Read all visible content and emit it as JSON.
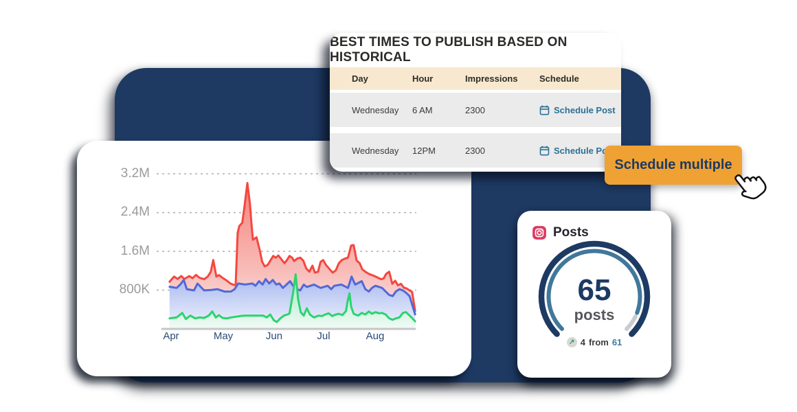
{
  "best_times_card": {
    "title": "BEST TIMES TO PUBLISH BASED ON HISTORICAL",
    "columns": [
      "Day",
      "Hour",
      "Impressions",
      "Schedule"
    ],
    "rows": [
      {
        "day": "Wednesday",
        "hour": "6 AM",
        "impressions": "2300",
        "action": "Schedule Post"
      },
      {
        "day": "Wednesday",
        "hour": "12PM",
        "impressions": "2300",
        "action": "Schedule Post"
      }
    ],
    "header_bg": "#f7e8cf",
    "link_color": "#2d7195"
  },
  "schedule_button": {
    "label": "Schedule multiple",
    "bg": "#efa233",
    "text_color": "#1d3a63"
  },
  "posts_card": {
    "title": "Posts",
    "icon": "instagram-icon",
    "value": "65",
    "unit": "posts",
    "delta": "4",
    "delta_word": "from",
    "previous": "61",
    "progress": 0.91,
    "arc_outer_color": "#1d3a63",
    "arc_inner_color": "#41789a",
    "arc_tail_color": "#c9ccd1"
  },
  "chart_data": {
    "type": "area",
    "title": "",
    "xlabel": "",
    "ylabel": "",
    "x_ticks": [
      "Apr",
      "May",
      "Jun",
      "Jul",
      "Aug"
    ],
    "y_ticks": [
      "3.2M",
      "2.4M",
      "1.6M",
      "800K"
    ],
    "y_tick_values_k": [
      3200,
      2400,
      1600,
      800
    ],
    "ylim_k": [
      0,
      3400
    ],
    "grid": "dashed horizontal",
    "legend": "none",
    "x_unit": "months (Apr=0 .. Aug=4), values in thousands of impressions",
    "series": [
      {
        "name": "red",
        "color": "#f4473f",
        "fill_top": "#f5827a",
        "fill_bottom": "#fdecea",
        "points": [
          [
            -0.03,
            975
          ],
          [
            0.06,
            1080
          ],
          [
            0.13,
            1030
          ],
          [
            0.2,
            1090
          ],
          [
            0.26,
            1030
          ],
          [
            0.36,
            1090
          ],
          [
            0.42,
            1045
          ],
          [
            0.49,
            1115
          ],
          [
            0.56,
            1055
          ],
          [
            0.65,
            1025
          ],
          [
            0.72,
            1080
          ],
          [
            0.78,
            1175
          ],
          [
            0.83,
            1420
          ],
          [
            0.89,
            1080
          ],
          [
            0.94,
            1110
          ],
          [
            1.01,
            1055
          ],
          [
            1.09,
            1000
          ],
          [
            1.17,
            935
          ],
          [
            1.24,
            905
          ],
          [
            1.27,
            915
          ],
          [
            1.31,
            1980
          ],
          [
            1.34,
            2120
          ],
          [
            1.4,
            2190
          ],
          [
            1.44,
            2500
          ],
          [
            1.5,
            3010
          ],
          [
            1.55,
            2590
          ],
          [
            1.58,
            2190
          ],
          [
            1.61,
            1840
          ],
          [
            1.68,
            1890
          ],
          [
            1.74,
            1640
          ],
          [
            1.79,
            1390
          ],
          [
            1.84,
            1290
          ],
          [
            1.9,
            1320
          ],
          [
            1.96,
            1420
          ],
          [
            2.01,
            1505
          ],
          [
            2.06,
            1470
          ],
          [
            2.11,
            1515
          ],
          [
            2.17,
            1435
          ],
          [
            2.23,
            1355
          ],
          [
            2.28,
            1420
          ],
          [
            2.33,
            1505
          ],
          [
            2.38,
            1470
          ],
          [
            2.42,
            1400
          ],
          [
            2.48,
            1450
          ],
          [
            2.54,
            1470
          ],
          [
            2.6,
            1410
          ],
          [
            2.66,
            1245
          ],
          [
            2.72,
            1180
          ],
          [
            2.78,
            1305
          ],
          [
            2.83,
            1160
          ],
          [
            2.89,
            1180
          ],
          [
            2.94,
            1385
          ],
          [
            2.99,
            1420
          ],
          [
            3.05,
            1315
          ],
          [
            3.12,
            1230
          ],
          [
            3.18,
            1160
          ],
          [
            3.24,
            1210
          ],
          [
            3.3,
            1355
          ],
          [
            3.36,
            1420
          ],
          [
            3.42,
            1450
          ],
          [
            3.48,
            1470
          ],
          [
            3.54,
            1720
          ],
          [
            3.59,
            1730
          ],
          [
            3.65,
            1410
          ],
          [
            3.71,
            1355
          ],
          [
            3.76,
            1230
          ],
          [
            3.82,
            1180
          ],
          [
            3.89,
            1135
          ],
          [
            3.94,
            1115
          ],
          [
            4.0,
            1090
          ],
          [
            4.07,
            1055
          ],
          [
            4.13,
            1025
          ],
          [
            4.18,
            1040
          ],
          [
            4.23,
            1135
          ],
          [
            4.29,
            1180
          ],
          [
            4.35,
            930
          ],
          [
            4.41,
            995
          ],
          [
            4.46,
            900
          ],
          [
            4.52,
            930
          ],
          [
            4.58,
            850
          ],
          [
            4.63,
            835
          ],
          [
            4.69,
            795
          ],
          [
            4.74,
            765
          ],
          [
            4.8,
            370
          ]
        ]
      },
      {
        "name": "blue",
        "color": "#5168d8",
        "fill_top": "#a9b9ef",
        "fill_bottom": "#f0f4fd",
        "points": [
          [
            -0.03,
            870
          ],
          [
            0.11,
            845
          ],
          [
            0.18,
            915
          ],
          [
            0.25,
            1010
          ],
          [
            0.31,
            820
          ],
          [
            0.45,
            795
          ],
          [
            0.52,
            935
          ],
          [
            0.65,
            795
          ],
          [
            0.79,
            805
          ],
          [
            0.91,
            820
          ],
          [
            1.05,
            770
          ],
          [
            1.18,
            772
          ],
          [
            1.25,
            820
          ],
          [
            1.32,
            937
          ],
          [
            1.46,
            915
          ],
          [
            1.6,
            937
          ],
          [
            1.66,
            890
          ],
          [
            1.73,
            985
          ],
          [
            1.8,
            915
          ],
          [
            1.86,
            1030
          ],
          [
            1.93,
            937
          ],
          [
            2.0,
            1010
          ],
          [
            2.07,
            915
          ],
          [
            2.13,
            937
          ],
          [
            2.2,
            845
          ],
          [
            2.27,
            915
          ],
          [
            2.34,
            985
          ],
          [
            2.4,
            890
          ],
          [
            2.47,
            820
          ],
          [
            2.54,
            795
          ],
          [
            2.61,
            915
          ],
          [
            2.67,
            866
          ],
          [
            2.81,
            915
          ],
          [
            2.94,
            845
          ],
          [
            3.08,
            890
          ],
          [
            3.15,
            820
          ],
          [
            3.21,
            890
          ],
          [
            3.35,
            915
          ],
          [
            3.48,
            845
          ],
          [
            3.55,
            1080
          ],
          [
            3.62,
            915
          ],
          [
            3.75,
            985
          ],
          [
            3.82,
            820
          ],
          [
            3.89,
            772
          ],
          [
            3.95,
            845
          ],
          [
            4.02,
            890
          ],
          [
            4.15,
            845
          ],
          [
            4.22,
            772
          ],
          [
            4.29,
            700
          ],
          [
            4.36,
            677
          ],
          [
            4.42,
            772
          ],
          [
            4.49,
            820
          ],
          [
            4.56,
            795
          ],
          [
            4.62,
            748
          ],
          [
            4.69,
            677
          ],
          [
            4.8,
            300
          ]
        ]
      },
      {
        "name": "green",
        "color": "#2bd36f",
        "fill_top": "#9fe8c0",
        "fill_bottom": "#f1fbf6",
        "points": [
          [
            -0.03,
            218
          ],
          [
            0.11,
            237
          ],
          [
            0.22,
            330
          ],
          [
            0.29,
            204
          ],
          [
            0.38,
            275
          ],
          [
            0.47,
            218
          ],
          [
            0.56,
            237
          ],
          [
            0.65,
            227
          ],
          [
            0.74,
            275
          ],
          [
            0.81,
            360
          ],
          [
            0.88,
            237
          ],
          [
            0.94,
            284
          ],
          [
            1.01,
            227
          ],
          [
            1.1,
            218
          ],
          [
            1.18,
            237
          ],
          [
            1.27,
            251
          ],
          [
            1.36,
            265
          ],
          [
            1.45,
            275
          ],
          [
            1.63,
            275
          ],
          [
            1.81,
            275
          ],
          [
            1.88,
            237
          ],
          [
            1.95,
            298
          ],
          [
            2.02,
            180
          ],
          [
            2.08,
            142
          ],
          [
            2.15,
            218
          ],
          [
            2.22,
            275
          ],
          [
            2.29,
            298
          ],
          [
            2.33,
            322
          ],
          [
            2.4,
            748
          ],
          [
            2.45,
            1127
          ],
          [
            2.5,
            606
          ],
          [
            2.55,
            346
          ],
          [
            2.61,
            275
          ],
          [
            2.67,
            426
          ],
          [
            2.73,
            298
          ],
          [
            2.81,
            237
          ],
          [
            2.9,
            275
          ],
          [
            2.97,
            265
          ],
          [
            3.03,
            298
          ],
          [
            3.1,
            322
          ],
          [
            3.17,
            265
          ],
          [
            3.24,
            298
          ],
          [
            3.3,
            312
          ],
          [
            3.37,
            284
          ],
          [
            3.44,
            369
          ],
          [
            3.47,
            559
          ],
          [
            3.51,
            734
          ],
          [
            3.54,
            464
          ],
          [
            3.59,
            312
          ],
          [
            3.68,
            275
          ],
          [
            3.75,
            330
          ],
          [
            3.82,
            298
          ],
          [
            3.89,
            360
          ],
          [
            3.95,
            312
          ],
          [
            4.02,
            346
          ],
          [
            4.09,
            322
          ],
          [
            4.15,
            330
          ],
          [
            4.22,
            298
          ],
          [
            4.29,
            218
          ],
          [
            4.36,
            189
          ],
          [
            4.42,
            218
          ],
          [
            4.49,
            237
          ],
          [
            4.56,
            330
          ],
          [
            4.62,
            346
          ],
          [
            4.69,
            275
          ],
          [
            4.76,
            204
          ],
          [
            4.8,
            156
          ]
        ]
      }
    ]
  }
}
